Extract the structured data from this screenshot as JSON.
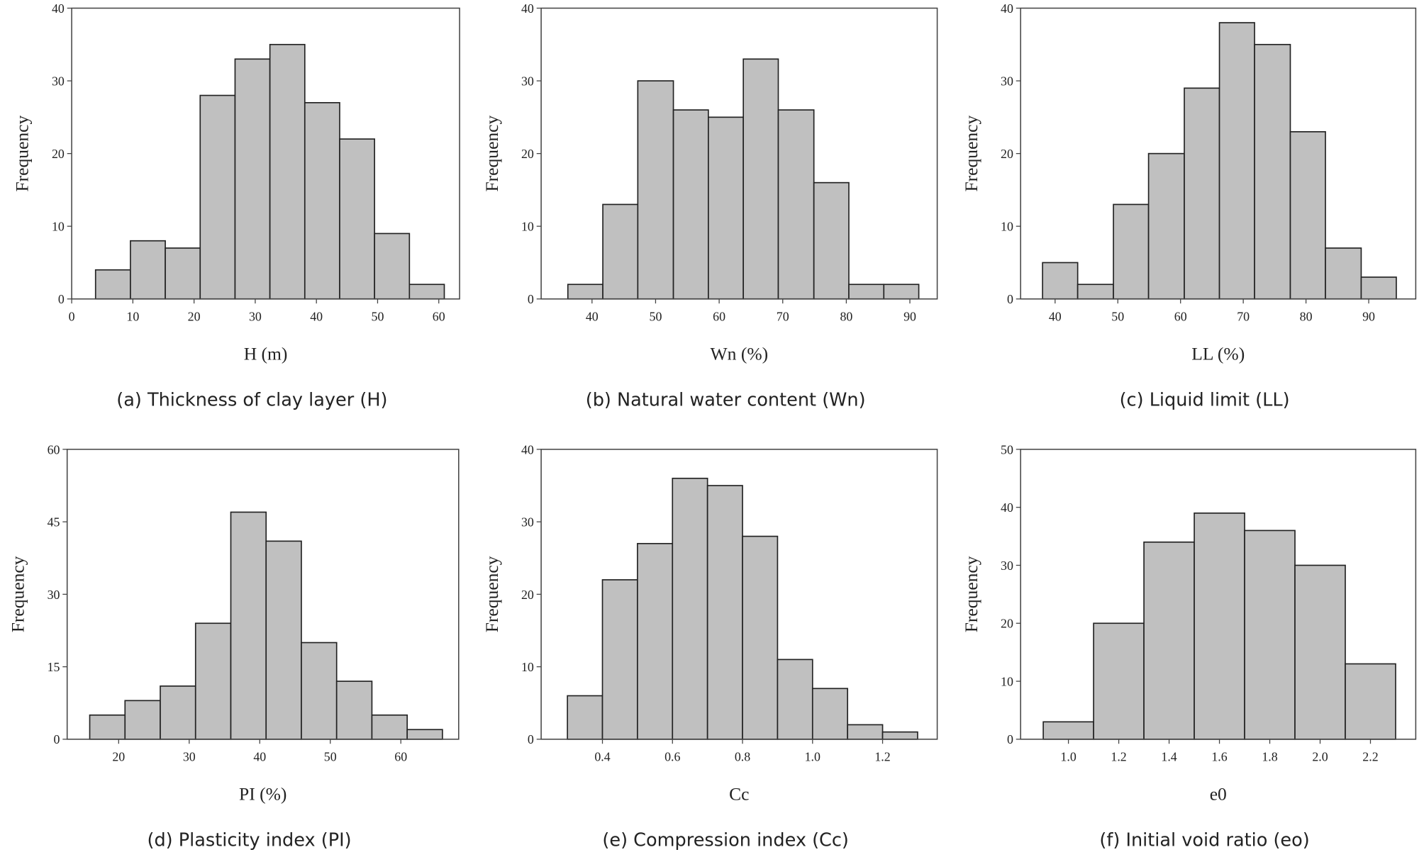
{
  "chart_data": [
    {
      "type": "histogram",
      "ylabel": "Frequency",
      "xlabel": "H (m)",
      "caption": "(a) Thickness of clay layer (H)",
      "bins": [
        3.9,
        9.6,
        15.3,
        21.0,
        26.7,
        32.4,
        38.1,
        43.8,
        49.5,
        55.2,
        60.9
      ],
      "values": [
        4,
        8,
        7,
        28,
        33,
        35,
        27,
        22,
        9,
        2
      ],
      "color": "#c0c0c0",
      "xlim": [
        0,
        63.4
      ],
      "xticks": [
        0,
        10,
        20,
        30,
        40,
        50,
        60
      ],
      "ylim": [
        0,
        40
      ],
      "yticks": [
        0,
        10,
        20,
        30,
        40
      ]
    },
    {
      "type": "histogram",
      "ylabel": "Frequency",
      "xlabel": "Wn (%)",
      "caption": "(b) Natural water content (Wn)",
      "bins": [
        36.2,
        41.7,
        47.2,
        52.8,
        58.3,
        63.8,
        69.3,
        74.9,
        80.4,
        85.9,
        91.4
      ],
      "values": [
        2,
        13,
        30,
        26,
        25,
        33,
        26,
        16,
        2,
        2
      ],
      "color": "#c0c0c0",
      "xlim": [
        32.0,
        94.3
      ],
      "xticks": [
        40,
        50,
        60,
        70,
        80,
        90
      ],
      "ylim": [
        0,
        40
      ],
      "yticks": [
        0,
        10,
        20,
        30,
        40
      ]
    },
    {
      "type": "histogram",
      "ylabel": "Frequency",
      "xlabel": "LL (%)",
      "caption": "(c) Liquid limit (LL)",
      "bins": [
        38.0,
        43.6,
        49.3,
        54.9,
        60.6,
        66.2,
        71.8,
        77.5,
        83.1,
        88.8,
        94.4
      ],
      "values": [
        5,
        2,
        13,
        20,
        29,
        38,
        35,
        23,
        7,
        3
      ],
      "color": "#c0c0c0",
      "xlim": [
        34.5,
        97.5
      ],
      "xticks": [
        40,
        50,
        60,
        70,
        80,
        90
      ],
      "ylim": [
        0,
        40
      ],
      "yticks": [
        0,
        10,
        20,
        30,
        40
      ]
    },
    {
      "type": "histogram",
      "ylabel": "Frequency",
      "xlabel": "PI (%)",
      "caption": "(d) Plasticity index (PI)",
      "bins": [
        15.9,
        20.9,
        25.9,
        30.9,
        35.9,
        40.9,
        45.9,
        50.9,
        55.9,
        60.9,
        65.9
      ],
      "values": [
        5,
        8,
        11,
        24,
        47,
        41,
        20,
        12,
        5,
        2
      ],
      "color": "#c0c0c0",
      "xlim": [
        12.7,
        68.2
      ],
      "xticks": [
        20,
        30,
        40,
        50,
        60
      ],
      "ylim": [
        0,
        60
      ],
      "yticks": [
        0,
        15,
        30,
        45,
        60
      ]
    },
    {
      "type": "histogram",
      "ylabel": "Frequency",
      "xlabel": "Cc",
      "caption": "(e) Compression index (Cc)",
      "bins": [
        0.3,
        0.4,
        0.5,
        0.6,
        0.7,
        0.8,
        0.9,
        1.0,
        1.1,
        1.2,
        1.3
      ],
      "values": [
        6,
        22,
        27,
        36,
        35,
        28,
        11,
        7,
        2,
        1
      ],
      "color": "#c0c0c0",
      "xlim": [
        0.225,
        1.356
      ],
      "xticks": [
        0.4,
        0.6,
        0.8,
        {
          "value": 1,
          "label": "1.0"
        },
        1.2
      ],
      "ylim": [
        0,
        40
      ],
      "yticks": [
        0,
        10,
        20,
        30,
        40
      ]
    },
    {
      "type": "histogram",
      "ylabel": "Frequency",
      "xlabel": "e0",
      "caption": "(f) Initial void ratio (eo)",
      "bins": [
        0.9,
        1.1,
        1.3,
        1.5,
        1.7,
        1.9,
        2.1,
        2.3
      ],
      "values": [
        3,
        20,
        34,
        39,
        36,
        30,
        13
      ],
      "color": "#c0c0c0",
      "xlim": [
        0.81,
        2.38
      ],
      "xticks": [
        {
          "value": 1,
          "label": "1.0"
        },
        1.2,
        1.4,
        1.6,
        1.8,
        {
          "value": 2,
          "label": "2.0"
        },
        2.2
      ],
      "ylim": [
        0,
        50
      ],
      "yticks": [
        0,
        10,
        20,
        30,
        40,
        50
      ]
    }
  ]
}
